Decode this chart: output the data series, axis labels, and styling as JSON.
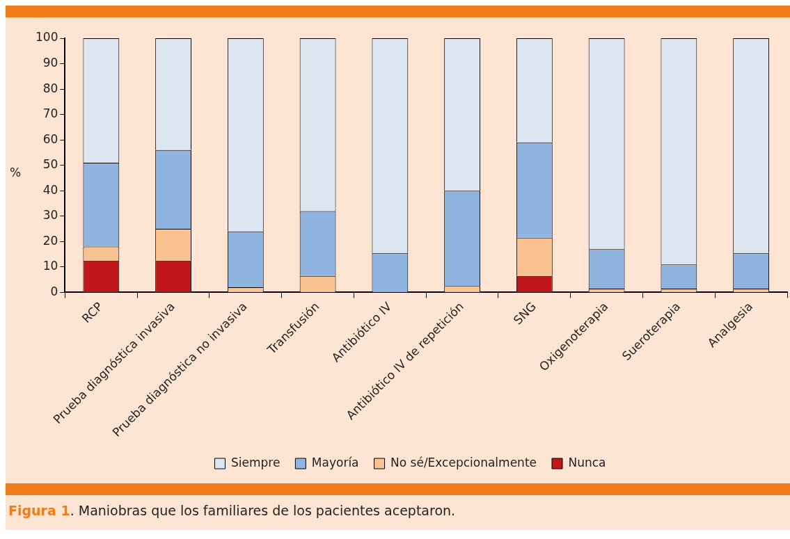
{
  "chart_data": {
    "type": "bar",
    "stacked": true,
    "ylabel": "%",
    "categories": [
      "RCP",
      "Prueba diagnóstica invasiva",
      "Prueba diagnóstica no invasiva",
      "Transfusión",
      "Antibiótico IV",
      "Antibiótico IV de repetición",
      "SNG",
      "Oxigenoterapia",
      "Sueroterapia",
      "Analgesia"
    ],
    "series": [
      {
        "name": "Nunca",
        "color": "#c0181a",
        "values": [
          12.5,
          12.5,
          0,
          0,
          0,
          0,
          6.5,
          0,
          0,
          0
        ]
      },
      {
        "name": "No sé/Excepcionalmente",
        "color": "#f8c391",
        "values": [
          5.5,
          12.5,
          2,
          6.5,
          0,
          2.5,
          15,
          1.5,
          1.5,
          1.5
        ]
      },
      {
        "name": "Mayoría",
        "color": "#90b4e0",
        "values": [
          33,
          31,
          22,
          25.5,
          15.5,
          37.5,
          37.5,
          15.5,
          9.5,
          14
        ]
      },
      {
        "name": "Siempre",
        "color": "#dce6f0",
        "values": [
          49,
          44,
          76,
          68,
          84.5,
          60,
          41,
          83,
          89,
          84.5
        ]
      }
    ],
    "ylim": [
      0,
      100
    ],
    "yticks": [
      0,
      10,
      20,
      30,
      40,
      50,
      60,
      70,
      80,
      90,
      100
    ],
    "grid": false,
    "legend": "bottom",
    "annotations": [
      "Figura 1. Maniobras que los familiares de los pacientes aceptaron."
    ]
  }
}
